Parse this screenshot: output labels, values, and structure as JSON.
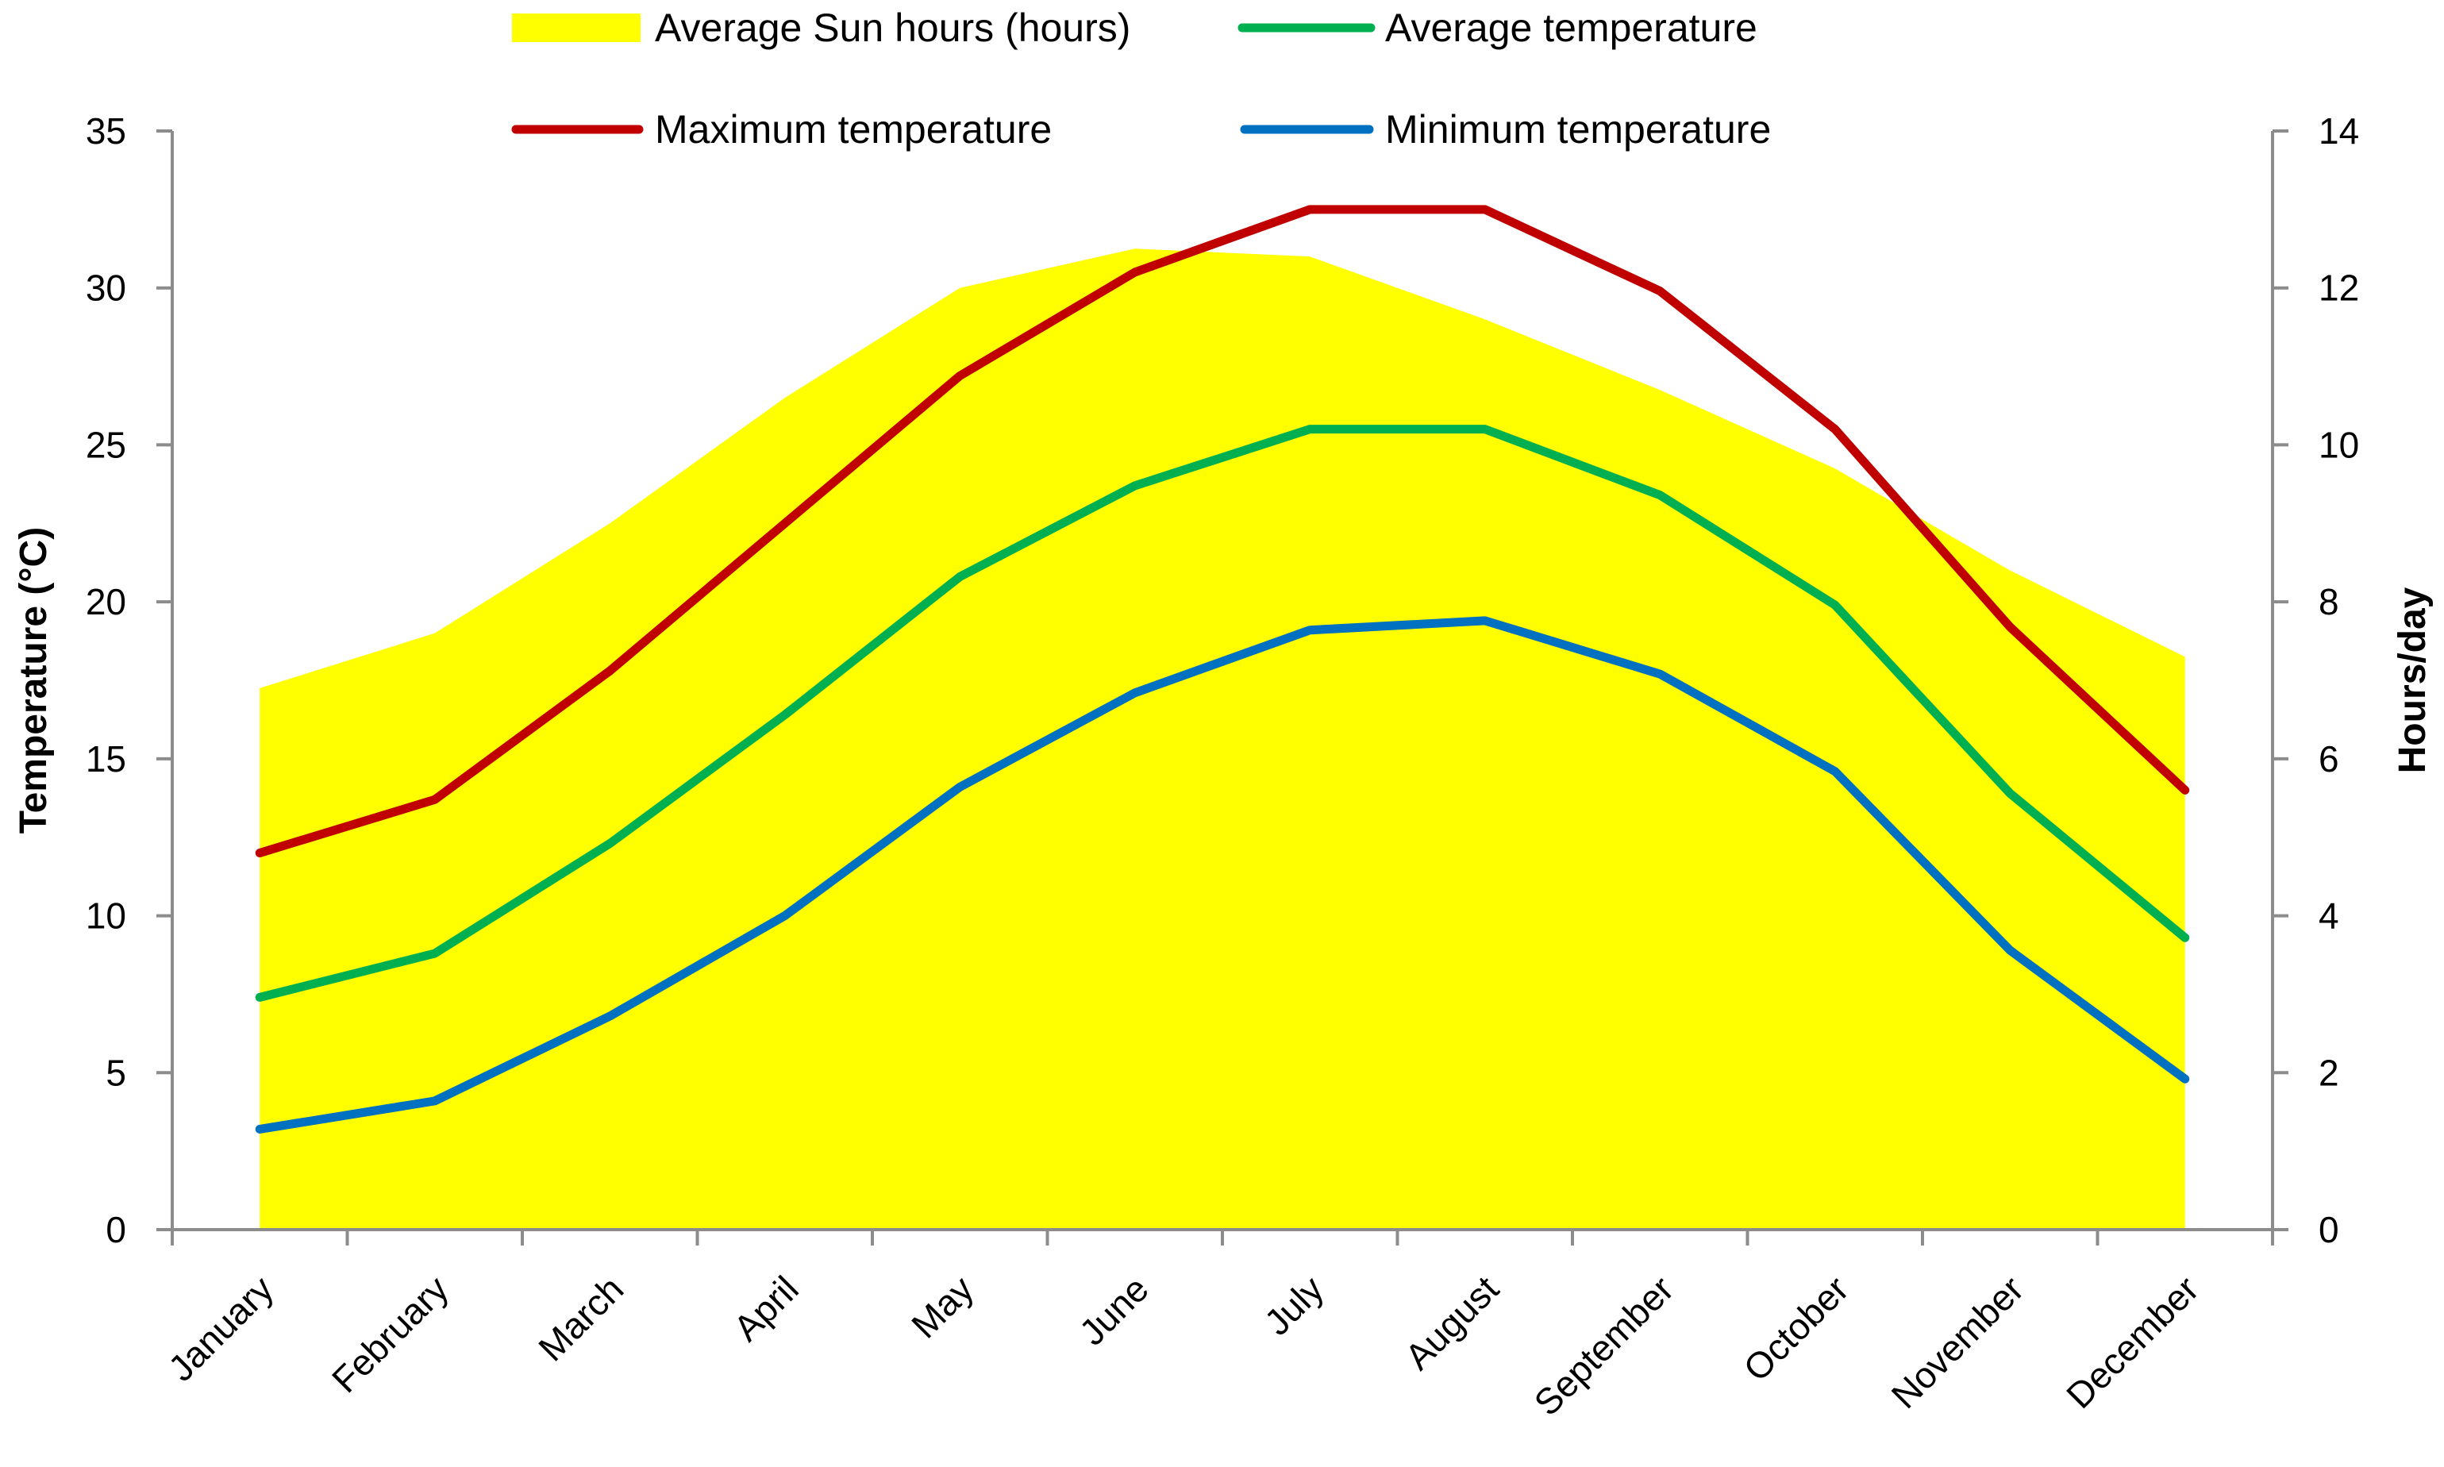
{
  "chart_data": {
    "type": "line+area",
    "categories": [
      "January",
      "February",
      "March",
      "April",
      "May",
      "June",
      "July",
      "August",
      "September",
      "October",
      "November",
      "December"
    ],
    "series": [
      {
        "name": "Average Sun hours (hours)",
        "kind": "area",
        "axis": "right",
        "color": "#ffff00",
        "values": [
          6.9,
          7.6,
          9.0,
          10.6,
          12.0,
          12.5,
          12.4,
          11.6,
          10.7,
          9.7,
          8.4,
          7.3
        ]
      },
      {
        "name": "Average temperature",
        "kind": "line",
        "axis": "left",
        "color": "#00b050",
        "values": [
          7.4,
          8.8,
          12.3,
          16.4,
          20.8,
          23.7,
          25.5,
          25.5,
          23.4,
          19.9,
          13.9,
          9.3
        ]
      },
      {
        "name": "Maximum temperature",
        "kind": "line",
        "axis": "left",
        "color": "#c00000",
        "values": [
          12.0,
          13.7,
          17.8,
          22.5,
          27.2,
          30.5,
          32.5,
          32.5,
          29.9,
          25.5,
          19.2,
          14.0
        ]
      },
      {
        "name": "Minimum temperature",
        "kind": "line",
        "axis": "left",
        "color": "#0070c0",
        "values": [
          3.2,
          4.1,
          6.8,
          10.0,
          14.1,
          17.1,
          19.1,
          19.4,
          17.7,
          14.6,
          8.9,
          4.8
        ]
      }
    ],
    "y_left": {
      "label": "Temperature (°C)",
      "min": 0,
      "max": 35,
      "ticks": [
        "0",
        "5",
        "10",
        "15",
        "20",
        "25",
        "30",
        "35"
      ]
    },
    "y_right": {
      "label": "Hours/day",
      "min": 0,
      "max": 14,
      "ticks": [
        "0",
        "2",
        "4",
        "6",
        "8",
        "10",
        "12",
        "14"
      ]
    },
    "legend": {
      "position": "top",
      "entries": [
        {
          "label": "Average Sun hours (hours)",
          "color": "#ffff00"
        },
        {
          "label": "Average temperature",
          "color": "#00b050"
        },
        {
          "label": "Maximum temperature",
          "color": "#c00000"
        },
        {
          "label": "Minimum temperature",
          "color": "#0070c0"
        }
      ]
    },
    "grid": false
  }
}
